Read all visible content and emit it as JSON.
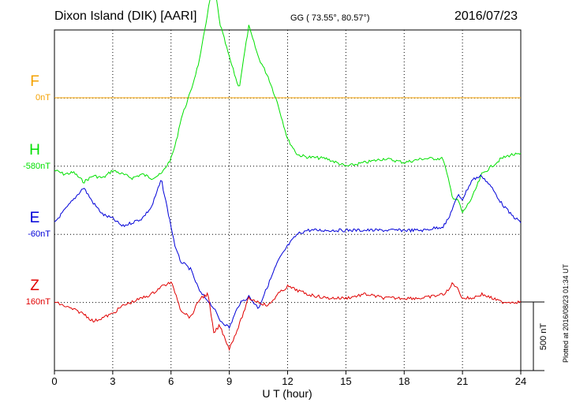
{
  "header": {
    "station": "Dixon Island (DIK)  [AARI]",
    "coords": "GG ( 73.55°,  80.57°)",
    "date": "2016/07/23"
  },
  "footer": {
    "plotted": "Plotted at 2016/08/23 01:34 UT"
  },
  "chart_data": {
    "type": "line",
    "xlabel": "U T (hour)",
    "ylabel": "",
    "xlim": [
      0,
      24
    ],
    "x_ticks": [
      "0",
      "3",
      "6",
      "9",
      "12",
      "15",
      "18",
      "21",
      "24"
    ],
    "grid": "dotted",
    "units_per_row": 87.5,
    "scale_bar": {
      "label": "500 nT",
      "value_nT": 500
    },
    "x": [
      0,
      0.5,
      1,
      1.5,
      2,
      2.5,
      3,
      3.5,
      4,
      4.5,
      5,
      5.5,
      6,
      6.25,
      6.5,
      7,
      7.5,
      7.9,
      8.2,
      8.5,
      9,
      9.5,
      10,
      10.5,
      11,
      11.5,
      12,
      12.5,
      13,
      14,
      15,
      16,
      17,
      18,
      19,
      20,
      20.3,
      20.5,
      20.8,
      21,
      21.5,
      22,
      22.5,
      23,
      23.5,
      24
    ],
    "series": [
      {
        "name": "F",
        "offset_label": "0nT",
        "color": "#f4a100",
        "values": [
          0,
          0,
          0,
          0,
          0,
          0,
          0,
          0,
          0,
          0,
          0,
          0,
          0,
          0,
          0,
          0,
          0,
          0,
          0,
          0,
          0,
          0,
          0,
          0,
          0,
          0,
          0,
          0,
          0,
          0,
          0,
          0,
          0,
          0,
          0,
          0,
          0,
          0,
          0,
          0,
          0,
          0,
          0,
          0,
          0,
          0
        ]
      },
      {
        "name": "H",
        "offset_label": "-580nT",
        "color": "#00e000",
        "values": [
          -5,
          -10,
          -8,
          -20,
          -12,
          -15,
          -5,
          -10,
          -15,
          -10,
          -15,
          -10,
          10,
          30,
          60,
          95,
          140,
          200,
          240,
          185,
          140,
          100,
          180,
          140,
          115,
          80,
          35,
          15,
          12,
          10,
          0,
          5,
          10,
          5,
          10,
          10,
          -20,
          -40,
          -45,
          -60,
          -40,
          -10,
          0,
          10,
          15,
          15
        ]
      },
      {
        "name": "E",
        "offset_label": "-60nT",
        "color": "#0000d8",
        "values": [
          15,
          30,
          45,
          60,
          40,
          25,
          20,
          10,
          15,
          20,
          35,
          70,
          10,
          -20,
          -35,
          -45,
          -75,
          -85,
          -95,
          -110,
          -120,
          -90,
          -80,
          -95,
          -65,
          -35,
          -15,
          0,
          5,
          5,
          5,
          5,
          5,
          5,
          5,
          10,
          20,
          35,
          50,
          45,
          70,
          75,
          60,
          40,
          25,
          15
        ]
      },
      {
        "name": "Z",
        "offset_label": "160nT",
        "color": "#e00000",
        "values": [
          0,
          -5,
          -10,
          -15,
          -25,
          -20,
          -15,
          -5,
          0,
          5,
          10,
          20,
          25,
          10,
          -10,
          -20,
          5,
          10,
          -40,
          -30,
          -60,
          -30,
          5,
          0,
          -5,
          10,
          20,
          15,
          10,
          5,
          5,
          10,
          5,
          5,
          5,
          10,
          15,
          25,
          15,
          5,
          5,
          10,
          5,
          0,
          0,
          0
        ]
      }
    ]
  }
}
